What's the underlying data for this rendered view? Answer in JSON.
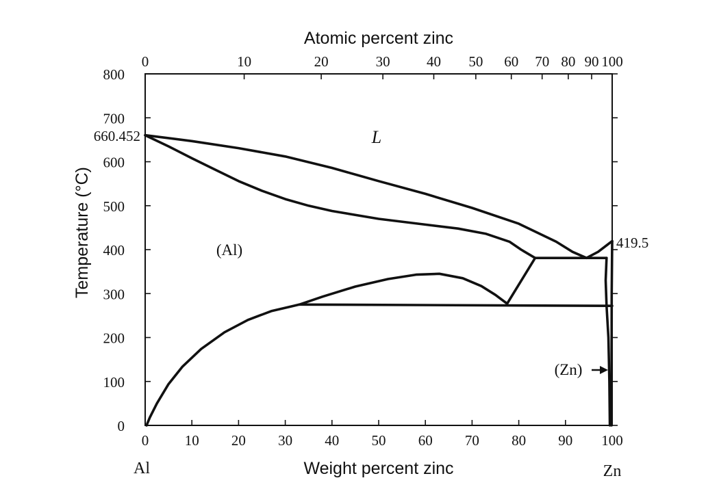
{
  "chart_data": {
    "type": "line",
    "title": "",
    "xlabel": "Weight percent zinc",
    "x2label": "Atomic percent zinc",
    "ylabel": "Temperature (°C)",
    "xlim": [
      0,
      100
    ],
    "ylim": [
      0,
      800
    ],
    "grid": false,
    "x_ticks": [
      {
        "v": 0,
        "label": "0"
      },
      {
        "v": 10,
        "label": "10"
      },
      {
        "v": 20,
        "label": "20"
      },
      {
        "v": 30,
        "label": "30"
      },
      {
        "v": 40,
        "label": "40"
      },
      {
        "v": 50,
        "label": "50"
      },
      {
        "v": 60,
        "label": "60"
      },
      {
        "v": 70,
        "label": "70"
      },
      {
        "v": 80,
        "label": "80"
      },
      {
        "v": 90,
        "label": "90"
      },
      {
        "v": 100,
        "label": "100"
      }
    ],
    "y_ticks": [
      {
        "v": 0,
        "label": "0"
      },
      {
        "v": 100,
        "label": "100"
      },
      {
        "v": 200,
        "label": "200"
      },
      {
        "v": 300,
        "label": "300"
      },
      {
        "v": 400,
        "label": "400"
      },
      {
        "v": 500,
        "label": "500"
      },
      {
        "v": 600,
        "label": "600"
      },
      {
        "v": 700,
        "label": "700"
      },
      {
        "v": 800,
        "label": "800"
      }
    ],
    "top_ticks": [
      {
        "v": 0,
        "label": "0"
      },
      {
        "v": 21.2,
        "label": "10"
      },
      {
        "v": 37.7,
        "label": "20"
      },
      {
        "v": 50.9,
        "label": "30"
      },
      {
        "v": 61.8,
        "label": "40"
      },
      {
        "v": 70.8,
        "label": "50"
      },
      {
        "v": 78.4,
        "label": "60"
      },
      {
        "v": 85.0,
        "label": "70"
      },
      {
        "v": 90.6,
        "label": "80"
      },
      {
        "v": 95.6,
        "label": "90"
      },
      {
        "v": 100,
        "label": "100"
      }
    ],
    "endpoint_labels": {
      "left": "Al",
      "right": "Zn"
    },
    "annotations": {
      "al_melting": {
        "x": 0,
        "y": 660.452,
        "label": "660.452"
      },
      "zn_melting": {
        "x": 100,
        "y": 419.5,
        "label": "419.5"
      },
      "liquid": {
        "x": 50,
        "y": 650,
        "label": "L"
      },
      "al_phase": {
        "x": 18,
        "y": 400,
        "label": "(Al)"
      },
      "zn_phase": {
        "x": 91,
        "y": 125,
        "label": "(Zn)"
      }
    },
    "series": [
      {
        "points": [
          [
            0,
            660.452
          ],
          [
            10,
            647
          ],
          [
            20,
            631
          ],
          [
            30,
            612
          ],
          [
            40,
            586
          ],
          [
            50,
            556
          ],
          [
            60,
            527
          ],
          [
            70,
            495
          ],
          [
            80,
            459
          ],
          [
            88,
            418
          ],
          [
            91.5,
            395
          ],
          [
            94.5,
            381
          ]
        ]
      },
      {
        "points": [
          [
            0,
            660.452
          ],
          [
            5,
            635
          ],
          [
            10,
            608
          ],
          [
            15,
            582
          ],
          [
            20,
            556
          ],
          [
            25,
            534
          ],
          [
            30,
            515
          ],
          [
            35,
            500
          ],
          [
            40,
            488
          ],
          [
            50,
            470
          ],
          [
            60,
            457
          ],
          [
            67,
            448
          ],
          [
            73,
            436
          ],
          [
            78,
            418
          ],
          [
            80.5,
            400
          ],
          [
            83.5,
            381
          ]
        ]
      },
      {
        "points": [
          [
            0.3,
            0
          ],
          [
            1,
            18
          ],
          [
            2.5,
            50
          ],
          [
            5,
            94
          ],
          [
            8,
            134
          ],
          [
            12,
            174
          ],
          [
            17,
            212
          ],
          [
            22,
            240
          ],
          [
            27,
            260
          ],
          [
            31,
            270
          ],
          [
            33,
            275
          ]
        ]
      },
      {
        "points": [
          [
            33,
            275
          ],
          [
            38,
            293
          ],
          [
            45,
            316
          ],
          [
            52,
            333
          ],
          [
            58,
            343
          ],
          [
            63,
            345
          ],
          [
            68,
            335
          ],
          [
            72,
            317
          ],
          [
            75,
            297
          ],
          [
            77.5,
            277
          ]
        ]
      },
      {
        "points": [
          [
            77.5,
            277
          ],
          [
            83.5,
            381
          ]
        ]
      },
      {
        "points": [
          [
            33,
            275
          ],
          [
            100,
            272
          ]
        ]
      },
      {
        "points": [
          [
            83.5,
            381
          ],
          [
            98.8,
            381
          ]
        ]
      },
      {
        "points": [
          [
            94.5,
            381
          ],
          [
            97,
            395
          ],
          [
            100,
            419.5
          ]
        ]
      },
      {
        "points": [
          [
            98.8,
            381
          ],
          [
            98.6,
            330
          ],
          [
            98.8,
            272
          ],
          [
            99.2,
            200
          ],
          [
            99.4,
            100
          ],
          [
            99.5,
            0
          ]
        ]
      },
      {
        "points": [
          [
            100,
            419.5
          ],
          [
            99.9,
            300
          ],
          [
            99.85,
            0
          ]
        ]
      }
    ]
  }
}
